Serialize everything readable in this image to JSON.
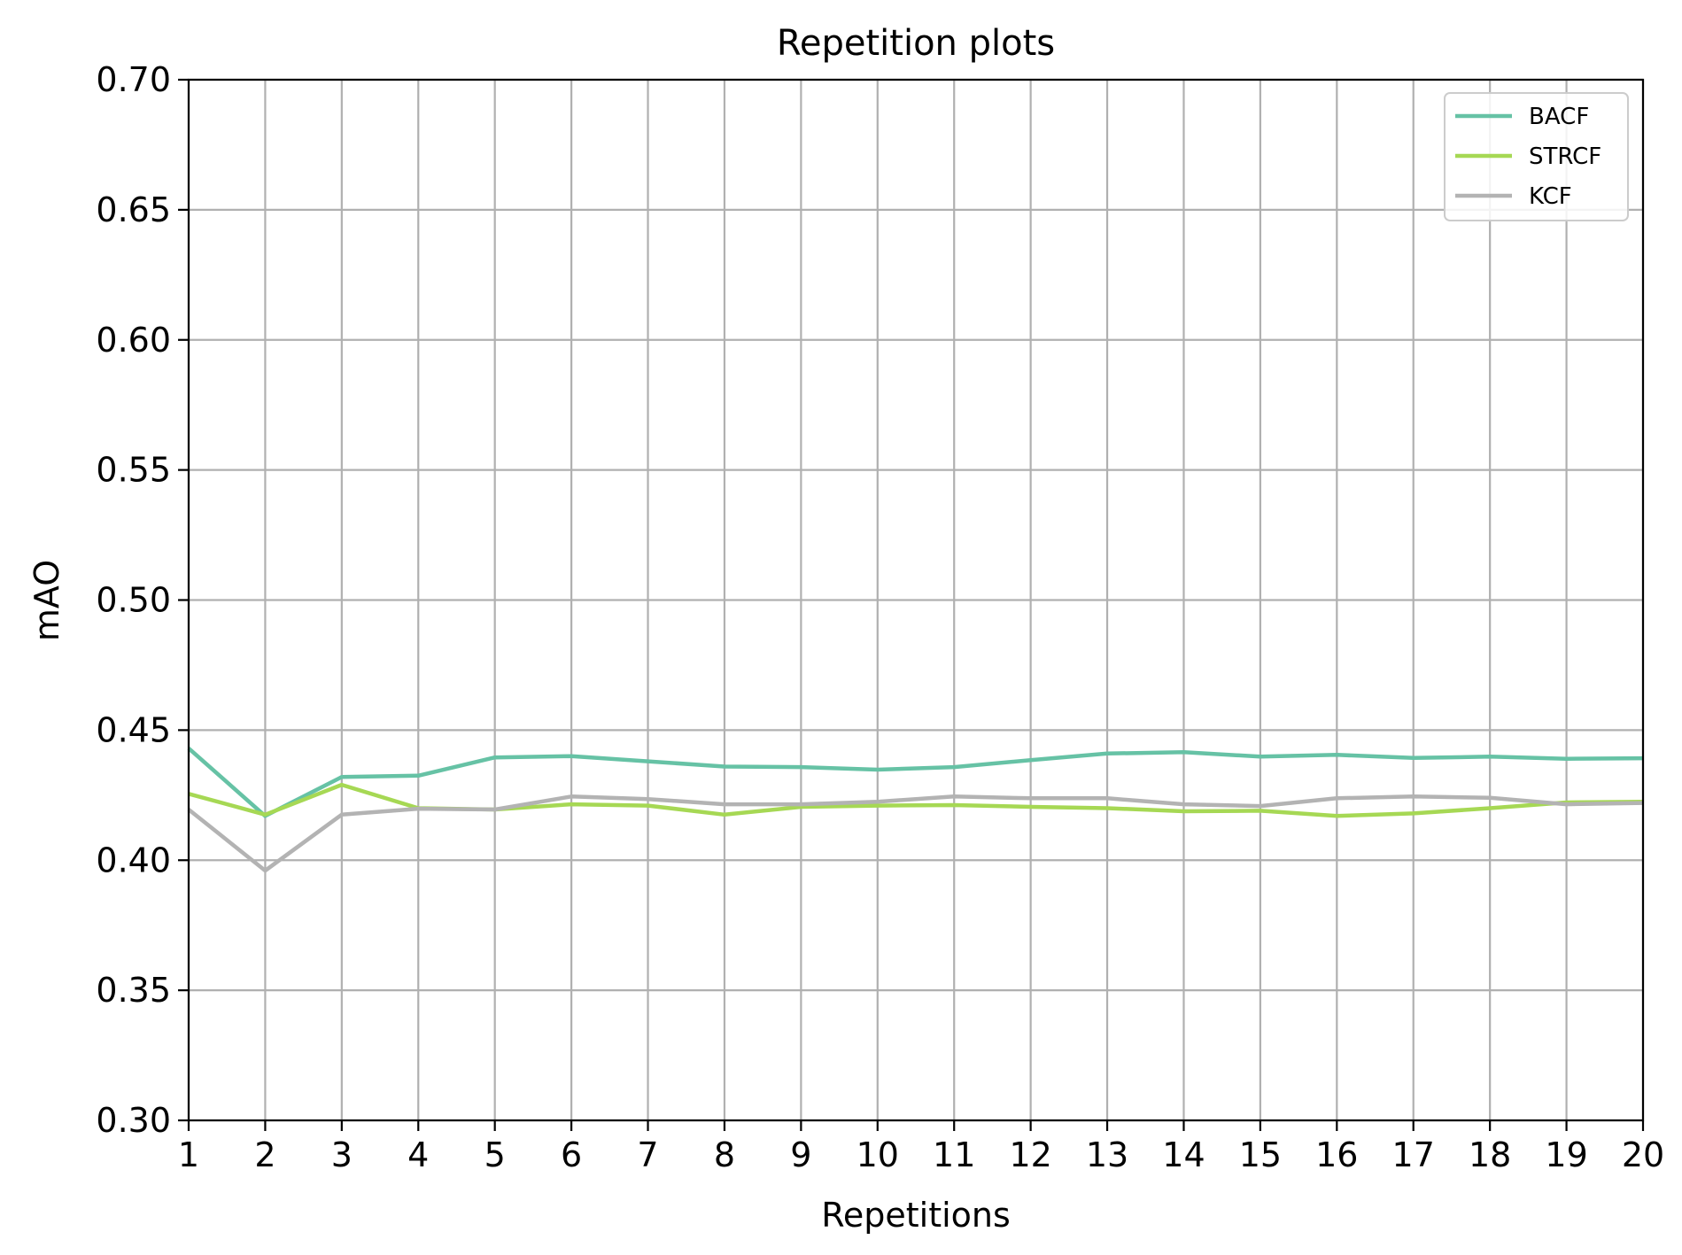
{
  "chart_data": {
    "type": "line",
    "title": "Repetition plots",
    "xlabel": "Repetitions",
    "ylabel": "mAO",
    "x": [
      1,
      2,
      3,
      4,
      5,
      6,
      7,
      8,
      9,
      10,
      11,
      12,
      13,
      14,
      15,
      16,
      17,
      18,
      19,
      20
    ],
    "xlim": [
      1,
      20
    ],
    "ylim": [
      0.3,
      0.7
    ],
    "xticks": [
      "1",
      "2",
      "3",
      "4",
      "5",
      "6",
      "7",
      "8",
      "9",
      "10",
      "11",
      "12",
      "13",
      "14",
      "15",
      "16",
      "17",
      "18",
      "19",
      "20"
    ],
    "yticks": [
      "0.30",
      "0.35",
      "0.40",
      "0.45",
      "0.50",
      "0.55",
      "0.60",
      "0.65",
      "0.70"
    ],
    "grid": true,
    "legend_position": "top-right",
    "series": [
      {
        "name": "BACF",
        "color": "#66c2a5",
        "values": [
          0.443,
          0.417,
          0.432,
          0.4325,
          0.4395,
          0.44,
          0.438,
          0.436,
          0.4358,
          0.4348,
          0.4358,
          0.4385,
          0.441,
          0.4415,
          0.4398,
          0.4405,
          0.4393,
          0.4398,
          0.439,
          0.4392
        ]
      },
      {
        "name": "STRCF",
        "color": "#a6d854",
        "values": [
          0.4255,
          0.4175,
          0.429,
          0.42,
          0.4195,
          0.4215,
          0.421,
          0.4175,
          0.4205,
          0.421,
          0.4212,
          0.4205,
          0.42,
          0.4188,
          0.419,
          0.417,
          0.418,
          0.42,
          0.4222,
          0.4225
        ]
      },
      {
        "name": "KCF",
        "color": "#b3b3b3",
        "values": [
          0.4195,
          0.396,
          0.4175,
          0.4198,
          0.4195,
          0.4245,
          0.4235,
          0.4215,
          0.4215,
          0.4225,
          0.4245,
          0.4238,
          0.4238,
          0.4215,
          0.4208,
          0.4238,
          0.4245,
          0.424,
          0.4215,
          0.422
        ]
      }
    ]
  }
}
